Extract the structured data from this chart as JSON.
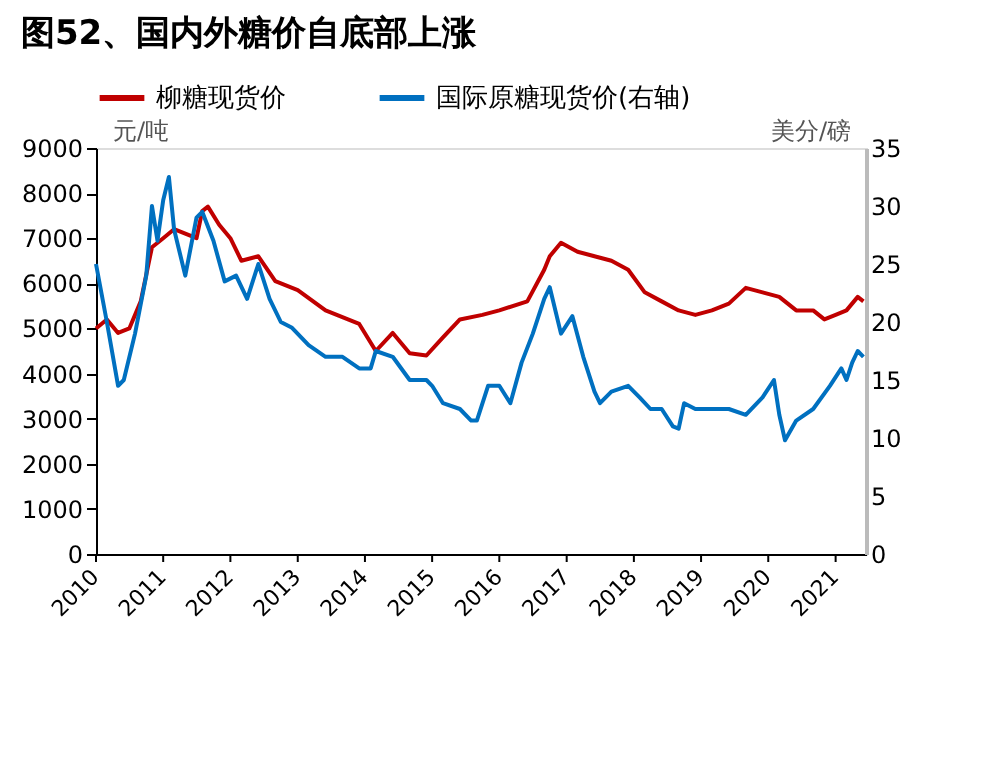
{
  "chart_data": {
    "type": "line",
    "title": "图52、国内外糖价自底部上涨",
    "ylabel": "元/吨",
    "y2label": "美分/磅",
    "xlim": [
      "2010-01-01",
      "2021-06-15"
    ],
    "xticks": [
      "2010",
      "2011",
      "2012",
      "2013",
      "2014",
      "2015",
      "2016",
      "2017",
      "2018",
      "2019",
      "2020",
      "2021"
    ],
    "ylim": [
      0,
      9000
    ],
    "yticks": [
      0,
      1000,
      2000,
      3000,
      4000,
      5000,
      6000,
      7000,
      8000,
      9000
    ],
    "y2lim": [
      0,
      35
    ],
    "y2ticks": [
      0,
      5,
      10,
      15,
      20,
      25,
      30,
      35
    ],
    "grid": false,
    "legend": "top",
    "marker": "none",
    "line_style": "solid",
    "series": [
      {
        "name": "柳糖现货价",
        "color": "#c00000",
        "x": [
          "2010-01",
          "2010-03",
          "2010-05",
          "2010-07",
          "2010-09",
          "2010-11",
          "2011-01",
          "2011-03",
          "2011-05",
          "2011-07",
          "2011-08",
          "2011-09",
          "2011-11",
          "2012-01",
          "2012-03",
          "2012-06",
          "2012-09",
          "2013-01",
          "2013-06",
          "2013-12",
          "2014-03",
          "2014-06",
          "2014-09",
          "2014-12",
          "2015-03",
          "2015-06",
          "2015-10",
          "2016-01",
          "2016-06",
          "2016-09",
          "2016-10",
          "2016-12",
          "2017-03",
          "2017-06",
          "2017-09",
          "2017-12",
          "2018-03",
          "2018-06",
          "2018-09",
          "2018-12",
          "2019-03",
          "2019-06",
          "2019-09",
          "2019-12",
          "2020-03",
          "2020-06",
          "2020-09",
          "2020-11",
          "2021-01",
          "2021-03",
          "2021-05",
          "2021-06"
        ],
        "values": [
          5000,
          5200,
          4900,
          5000,
          5600,
          6800,
          7000,
          7200,
          7100,
          7000,
          7600,
          7700,
          7300,
          7000,
          6500,
          6600,
          6050,
          5850,
          5400,
          5100,
          4500,
          4900,
          4450,
          4400,
          4800,
          5200,
          5300,
          5400,
          5600,
          6300,
          6600,
          6900,
          6700,
          6600,
          6500,
          6300,
          5800,
          5600,
          5400,
          5300,
          5400,
          5550,
          5900,
          5800,
          5700,
          5400,
          5400,
          5200,
          5300,
          5400,
          5700,
          5600
        ]
      },
      {
        "name": "国际原糖现货价(右轴)",
        "color": "#0070c0",
        "axis": "y2",
        "x": [
          "2010-01",
          "2010-03",
          "2010-05",
          "2010-06",
          "2010-08",
          "2010-10",
          "2010-11",
          "2010-12",
          "2011-01",
          "2011-02",
          "2011-03",
          "2011-05",
          "2011-07",
          "2011-08",
          "2011-10",
          "2011-12",
          "2012-02",
          "2012-04",
          "2012-06",
          "2012-08",
          "2012-10",
          "2012-12",
          "2013-03",
          "2013-06",
          "2013-09",
          "2013-12",
          "2014-02",
          "2014-03",
          "2014-06",
          "2014-09",
          "2014-12",
          "2015-01",
          "2015-03",
          "2015-06",
          "2015-08",
          "2015-09",
          "2015-11",
          "2016-01",
          "2016-03",
          "2016-05",
          "2016-07",
          "2016-09",
          "2016-10",
          "2016-12",
          "2017-02",
          "2017-04",
          "2017-06",
          "2017-07",
          "2017-09",
          "2017-12",
          "2018-02",
          "2018-04",
          "2018-06",
          "2018-08",
          "2018-09",
          "2018-10",
          "2018-12",
          "2019-03",
          "2019-06",
          "2019-09",
          "2019-12",
          "2020-02",
          "2020-03",
          "2020-04",
          "2020-06",
          "2020-09",
          "2020-12",
          "2021-02",
          "2021-03",
          "2021-04",
          "2021-05",
          "2021-06"
        ],
        "values": [
          25,
          20,
          14.5,
          15,
          19,
          24,
          30,
          27,
          30.5,
          32.5,
          28,
          24,
          29,
          29.5,
          27,
          23.5,
          24,
          22,
          25,
          22,
          20,
          19.5,
          18,
          17,
          17,
          16,
          16,
          17.5,
          17,
          15,
          15,
          14.5,
          13,
          12.5,
          11.5,
          11.5,
          14.5,
          14.5,
          13,
          16.5,
          19,
          22,
          23,
          19,
          20.5,
          17,
          14,
          13,
          14,
          14.5,
          13.5,
          12.5,
          12.5,
          11,
          10.8,
          13,
          12.5,
          12.5,
          12.5,
          12,
          13.5,
          15,
          12,
          9.8,
          11.5,
          12.5,
          14.5,
          16,
          15,
          16.5,
          17.5,
          17
        ]
      }
    ]
  }
}
